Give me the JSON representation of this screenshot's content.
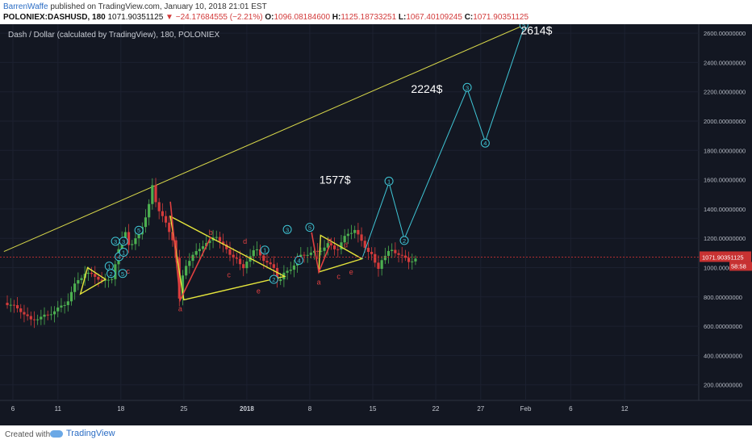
{
  "header": {
    "author": "BarrenWaffe",
    "published_text": "published on TradingView.com, January 10, 2018 21:01 EST",
    "symbol": "POLONIEX:DASHUSD, 180",
    "price": "1071.90351125",
    "change": "▼ −24.17684555 (−2.21%)",
    "o_label": "O:",
    "o_value": "1096.08184600",
    "h_label": "H:",
    "h_value": "1125.18733251",
    "l_label": "L:",
    "l_value": "1067.40109245",
    "c_label": "C:",
    "c_value": "1071.90351125"
  },
  "chart_title": "Dash / Dollar (calculated by TradingView), 180, POLONIEX",
  "colors": {
    "background": "#131722",
    "up": "#4caf50",
    "down": "#d43b3b",
    "triangle": "#e6e63c",
    "projection": "#3fc6d6",
    "correction": "#e04040",
    "trendline": "#d8d84a",
    "price_line": "#c83232"
  },
  "chart_data": {
    "type": "candlestick",
    "title": "Dash / Dollar (calculated by TradingView), 180, POLONIEX",
    "y_axis": {
      "min": 200,
      "max": 2800,
      "side": "right",
      "ticks": [
        "2800.00000000",
        "2600.00000000",
        "2400.00000000",
        "2200.00000000",
        "2000.00000000",
        "1800.00000000",
        "1600.00000000",
        "1400.00000000",
        "1200.00000000",
        "1000.00000000",
        "800.00000000",
        "600.00000000",
        "400.00000000",
        "200.00000000"
      ]
    },
    "x_axis": {
      "ticks": [
        {
          "label": "6",
          "day": 0
        },
        {
          "label": "11",
          "day": 5
        },
        {
          "label": "18",
          "day": 12
        },
        {
          "label": "25",
          "day": 19
        },
        {
          "label": "2018",
          "day": 26
        },
        {
          "label": "8",
          "day": 33
        },
        {
          "label": "15",
          "day": 40
        },
        {
          "label": "22",
          "day": 47
        },
        {
          "label": "27",
          "day": 52
        },
        {
          "label": "Feb",
          "day": 57
        },
        {
          "label": "6",
          "day": 62
        },
        {
          "label": "12",
          "day": 68
        }
      ]
    },
    "last_price_label": "1071.90351125",
    "countdown_label": "58:58",
    "price_path": [
      [
        -1,
        760
      ],
      [
        0,
        740
      ],
      [
        1,
        700
      ],
      [
        2,
        640
      ],
      [
        3,
        660
      ],
      [
        4,
        680
      ],
      [
        5,
        720
      ],
      [
        6,
        760
      ],
      [
        7,
        900
      ],
      [
        8,
        960
      ],
      [
        9,
        950
      ],
      [
        10,
        900
      ],
      [
        11,
        930
      ],
      [
        12,
        1180
      ],
      [
        12.5,
        1250
      ],
      [
        13,
        1130
      ],
      [
        14,
        1230
      ],
      [
        15,
        1380
      ],
      [
        15.5,
        1560
      ],
      [
        16,
        1420
      ],
      [
        17,
        1300
      ],
      [
        18,
        1160
      ],
      [
        18.5,
        780
      ],
      [
        19,
        1000
      ],
      [
        20,
        1080
      ],
      [
        21,
        1150
      ],
      [
        22,
        1180
      ],
      [
        22.5,
        1230
      ],
      [
        23,
        1180
      ],
      [
        24,
        1100
      ],
      [
        25,
        1050
      ],
      [
        25.5,
        980
      ],
      [
        26,
        1050
      ],
      [
        27,
        1130
      ],
      [
        27.5,
        1090
      ],
      [
        28,
        1040
      ],
      [
        29,
        1000
      ],
      [
        29.5,
        890
      ],
      [
        30,
        950
      ],
      [
        31,
        1000
      ],
      [
        32,
        1080
      ],
      [
        33,
        1100
      ],
      [
        34,
        1110
      ],
      [
        35,
        1160
      ],
      [
        36,
        1120
      ],
      [
        37,
        1220
      ],
      [
        38,
        1260
      ],
      [
        39,
        1150
      ],
      [
        40,
        1080
      ],
      [
        40.5,
        970
      ],
      [
        41,
        1060
      ],
      [
        42,
        1120
      ],
      [
        43,
        1090
      ],
      [
        44,
        1040
      ],
      [
        45,
        1070
      ]
    ],
    "wave_labels": [
      {
        "label": "1",
        "day": 10.7,
        "value": 1010,
        "color": "projection"
      },
      {
        "label": "2",
        "day": 10.9,
        "value": 960,
        "color": "projection"
      },
      {
        "label": "3",
        "day": 11.4,
        "value": 1180,
        "color": "projection"
      },
      {
        "label": "4",
        "day": 11.8,
        "value": 1075,
        "color": "projection"
      },
      {
        "label": "5",
        "day": 12.2,
        "value": 960,
        "color": "projection"
      },
      {
        "label": "1",
        "day": 12.3,
        "value": 1105,
        "color": "projection"
      },
      {
        "label": "3",
        "day": 12.3,
        "value": 1180,
        "color": "projection"
      },
      {
        "label": "5",
        "day": 14.0,
        "value": 1255,
        "color": "projection"
      },
      {
        "label": "c",
        "day": 12.8,
        "value": 975,
        "color": "correction"
      },
      {
        "label": "a",
        "day": 18.6,
        "value": 720,
        "color": "correction"
      },
      {
        "label": "b",
        "day": 22.0,
        "value": 1240,
        "color": "correction"
      },
      {
        "label": "c",
        "day": 24.0,
        "value": 950,
        "color": "correction"
      },
      {
        "label": "d",
        "day": 25.8,
        "value": 1180,
        "color": "correction"
      },
      {
        "label": "e",
        "day": 27.3,
        "value": 840,
        "color": "correction"
      },
      {
        "label": "1",
        "day": 28.0,
        "value": 1120,
        "color": "projection"
      },
      {
        "label": "2",
        "day": 29.0,
        "value": 920,
        "color": "projection"
      },
      {
        "label": "3",
        "day": 30.5,
        "value": 1260,
        "color": "projection"
      },
      {
        "label": "4",
        "day": 31.8,
        "value": 1050,
        "color": "projection"
      },
      {
        "label": "5",
        "day": 33.0,
        "value": 1275,
        "color": "projection"
      },
      {
        "label": "a",
        "day": 34.0,
        "value": 900,
        "color": "correction"
      },
      {
        "label": "b",
        "day": 35.2,
        "value": 1185,
        "color": "correction"
      },
      {
        "label": "c",
        "day": 36.2,
        "value": 940,
        "color": "correction"
      },
      {
        "label": "d",
        "day": 37.0,
        "value": 1155,
        "color": "correction"
      },
      {
        "label": "e",
        "day": 37.6,
        "value": 970,
        "color": "correction"
      }
    ],
    "triangles": [
      [
        [
          7.5,
          820
        ],
        [
          10.3,
          920
        ],
        [
          8.3,
          1000
        ]
      ],
      [
        [
          17.5,
          1350
        ],
        [
          19,
          780
        ],
        [
          30.2,
          940
        ]
      ],
      [
        [
          34.2,
          1220
        ],
        [
          34,
          970
        ],
        [
          38.8,
          1060
        ]
      ]
    ],
    "trendline": [
      [
        -1,
        1110
      ],
      [
        57,
        2660
      ]
    ],
    "projection_path": [
      [
        38.8,
        1060
      ],
      [
        41.8,
        1580
      ],
      [
        43.5,
        1195
      ],
      [
        50.5,
        2220
      ],
      [
        52.5,
        1860
      ],
      [
        56.8,
        2640
      ]
    ],
    "projection_labels": [
      {
        "label": "1",
        "day": 41.8,
        "value": 1590
      },
      {
        "label": "2",
        "day": 43.5,
        "value": 1185
      },
      {
        "label": "3",
        "day": 50.5,
        "value": 2230
      },
      {
        "label": "4",
        "day": 52.5,
        "value": 1850
      },
      {
        "label": "5",
        "day": 56.8,
        "value": 2655
      }
    ],
    "price_targets": [
      {
        "label": "1577$",
        "day": 35.8,
        "value": 1600
      },
      {
        "label": "2224$",
        "day": 46.0,
        "value": 2220
      },
      {
        "label": "2614$",
        "day": 58.2,
        "value": 2620
      }
    ]
  },
  "footer": {
    "created_with": "Created with",
    "brand": "TradingView"
  }
}
